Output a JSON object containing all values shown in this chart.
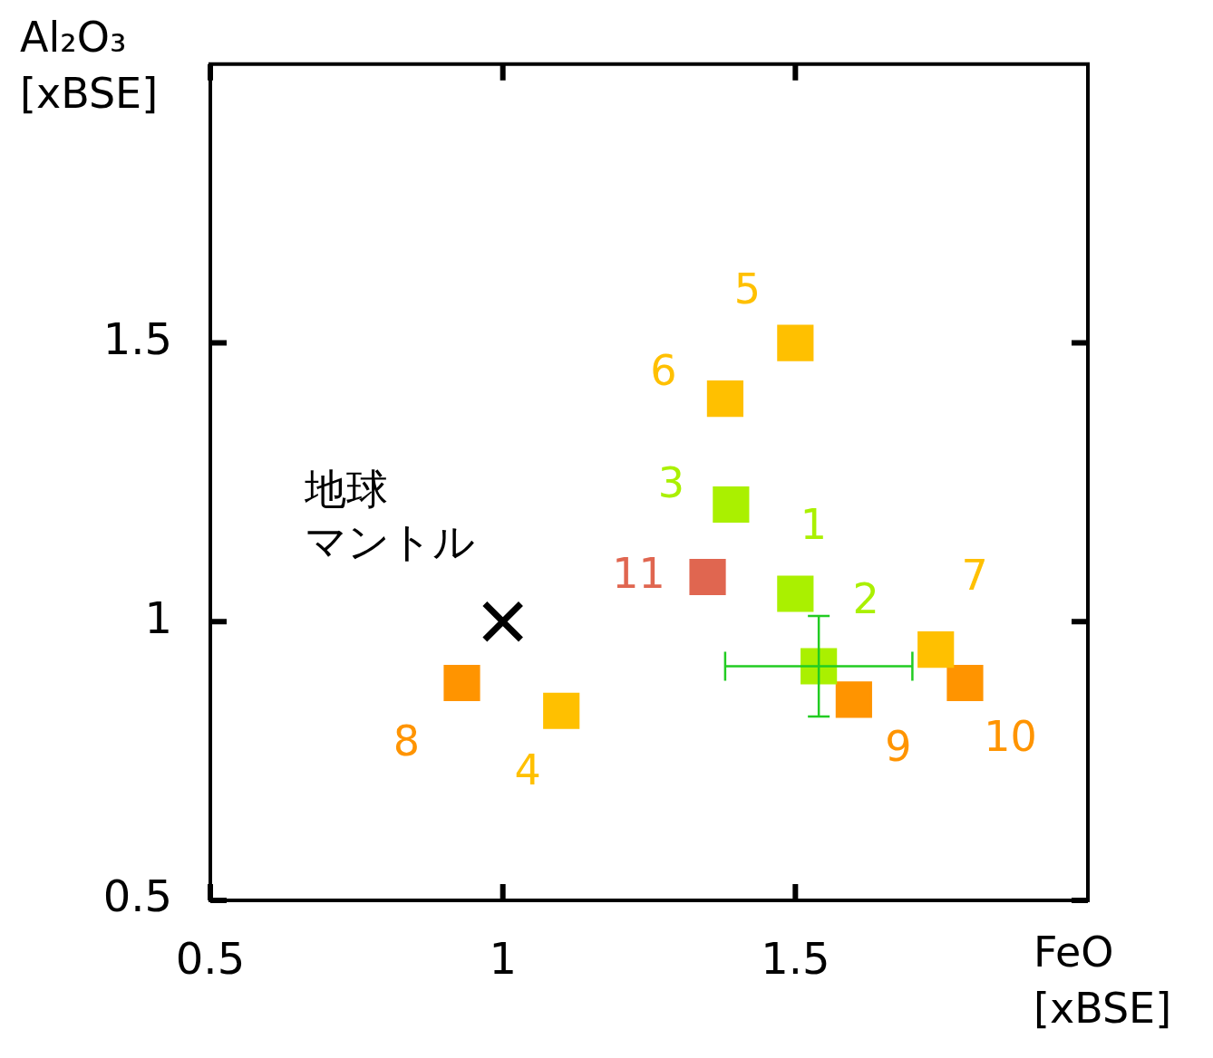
{
  "chart_data": {
    "type": "scatter",
    "xlabel": "FeO [xBSE]",
    "ylabel": "Al₂O₃ [xBSE]",
    "xlim": [
      0.5,
      2.0
    ],
    "ylim": [
      0.5,
      2.0
    ],
    "xticks": [
      0.5,
      1,
      1.5
    ],
    "yticks": [
      0.5,
      1,
      1.5
    ],
    "grid": false,
    "legend": false,
    "marker": "square",
    "series": [
      {
        "name": "1",
        "color": "#aaf000",
        "x": [
          1.5
        ],
        "values": [
          1.05
        ]
      },
      {
        "name": "2",
        "color": "#aaf000",
        "x": [
          1.54
        ],
        "values": [
          0.92
        ],
        "errors": [
          0.09
        ],
        "xerrors": [
          0.16
        ]
      },
      {
        "name": "3",
        "color": "#aaf000",
        "x": [
          1.39
        ],
        "values": [
          1.21
        ]
      },
      {
        "name": "4",
        "color": "#ffc000",
        "x": [
          1.1
        ],
        "values": [
          0.84
        ]
      },
      {
        "name": "5",
        "color": "#ffc000",
        "x": [
          1.5
        ],
        "values": [
          1.5
        ]
      },
      {
        "name": "6",
        "color": "#ffc000",
        "x": [
          1.38
        ],
        "values": [
          1.4
        ]
      },
      {
        "name": "7",
        "color": "#ffc000",
        "x": [
          1.74
        ],
        "values": [
          0.95
        ]
      },
      {
        "name": "8",
        "color": "#ff9400",
        "x": [
          0.93
        ],
        "values": [
          0.89
        ]
      },
      {
        "name": "9",
        "color": "#ff9400",
        "x": [
          1.6
        ],
        "values": [
          0.86
        ]
      },
      {
        "name": "10",
        "color": "#ff9400",
        "x": [
          1.79
        ],
        "values": [
          0.89
        ]
      },
      {
        "name": "11",
        "color": "#e06650",
        "x": [
          1.35
        ],
        "values": [
          1.08
        ]
      },
      {
        "name": "地球マントル",
        "color": "#000000",
        "marker": "cross",
        "x": [
          1.0
        ],
        "values": [
          1.0
        ]
      }
    ]
  }
}
